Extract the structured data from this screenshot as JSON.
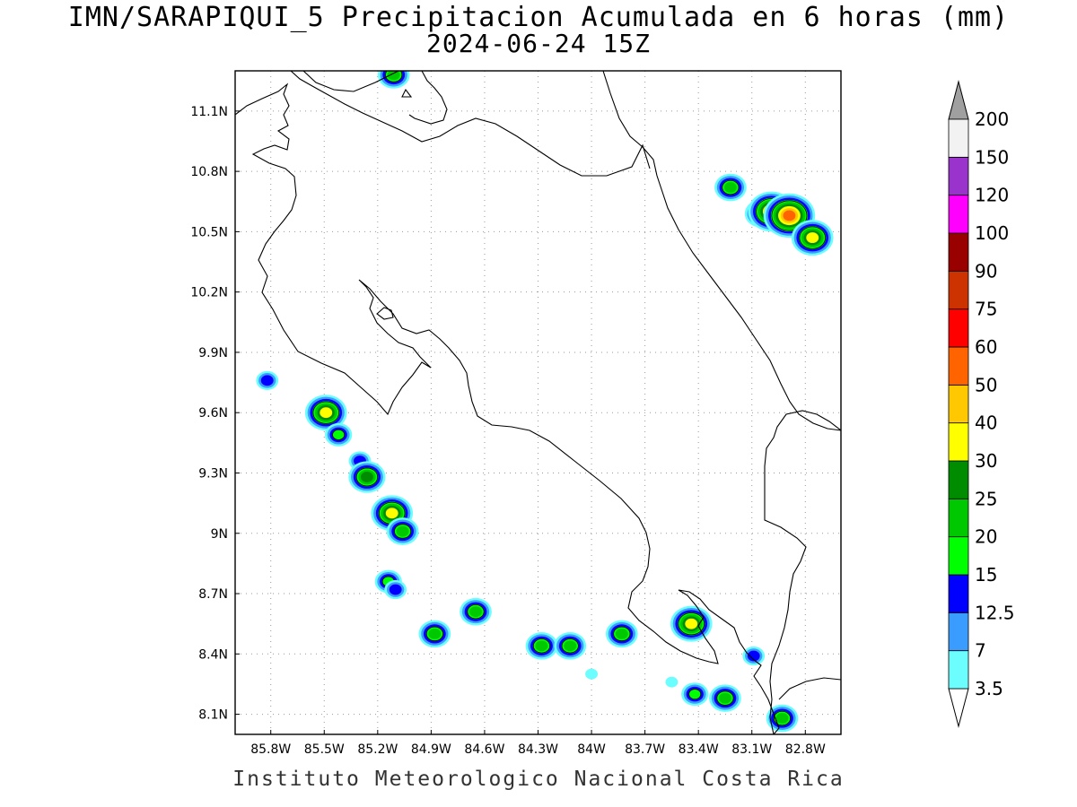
{
  "title_line1": "IMN/SARAPIQUI_5 Precipitacion Acumulada en 6 horas (mm)",
  "title_line2": "2024-06-24 15Z",
  "footer": "Instituto Meteorologico Nacional Costa Rica",
  "map": {
    "lon_range": [
      -86.0,
      -82.6
    ],
    "lat_range": [
      8.0,
      11.3
    ],
    "lat_ticks": [
      {
        "v": 11.1,
        "label": "11.1N"
      },
      {
        "v": 10.8,
        "label": "10.8N"
      },
      {
        "v": 10.5,
        "label": "10.5N"
      },
      {
        "v": 10.2,
        "label": "10.2N"
      },
      {
        "v": 9.9,
        "label": "9.9N"
      },
      {
        "v": 9.6,
        "label": "9.6N"
      },
      {
        "v": 9.3,
        "label": "9.3N"
      },
      {
        "v": 9.0,
        "label": "9N"
      },
      {
        "v": 8.7,
        "label": "8.7N"
      },
      {
        "v": 8.4,
        "label": "8.4N"
      },
      {
        "v": 8.1,
        "label": "8.1N"
      }
    ],
    "lon_ticks": [
      {
        "v": -85.8,
        "label": "85.8W"
      },
      {
        "v": -85.5,
        "label": "85.5W"
      },
      {
        "v": -85.2,
        "label": "85.2W"
      },
      {
        "v": -84.9,
        "label": "84.9W"
      },
      {
        "v": -84.6,
        "label": "84.6W"
      },
      {
        "v": -84.3,
        "label": "84.3W"
      },
      {
        "v": -84.0,
        "label": "84W"
      },
      {
        "v": -83.7,
        "label": "83.7W"
      },
      {
        "v": -83.4,
        "label": "83.4W"
      },
      {
        "v": -83.1,
        "label": "83.1W"
      },
      {
        "v": -82.8,
        "label": "82.8W"
      }
    ],
    "grid": true
  },
  "colorbar": {
    "levels": [
      "3.5",
      "7",
      "12.5",
      "15",
      "20",
      "25",
      "30",
      "40",
      "50",
      "60",
      "75",
      "90",
      "100",
      "120",
      "150",
      "200"
    ],
    "colors": [
      "#6cfdff",
      "#3a9cff",
      "#0000ff",
      "#00ff00",
      "#00c800",
      "#008c00",
      "#ffff00",
      "#ffc800",
      "#ff6400",
      "#ff0000",
      "#cc3300",
      "#990000",
      "#ff00ff",
      "#9933cc",
      "#f2f2f2"
    ],
    "lower_end_color": "#ffffff",
    "upper_end_color": "#a0a0a0"
  },
  "precip_cells": [
    {
      "lon": -85.82,
      "lat": 9.76,
      "amount": 14
    },
    {
      "lon": -85.49,
      "lat": 9.6,
      "amount": 32
    },
    {
      "lon": -85.42,
      "lat": 9.49,
      "amount": 16
    },
    {
      "lon": -85.3,
      "lat": 9.36,
      "amount": 13
    },
    {
      "lon": -85.26,
      "lat": 9.28,
      "amount": 28
    },
    {
      "lon": -85.12,
      "lat": 9.1,
      "amount": 30
    },
    {
      "lon": -85.06,
      "lat": 9.01,
      "amount": 22
    },
    {
      "lon": -85.14,
      "lat": 8.76,
      "amount": 18
    },
    {
      "lon": -85.1,
      "lat": 8.72,
      "amount": 14
    },
    {
      "lon": -84.88,
      "lat": 8.5,
      "amount": 22
    },
    {
      "lon": -84.65,
      "lat": 8.61,
      "amount": 22
    },
    {
      "lon": -84.28,
      "lat": 8.44,
      "amount": 22
    },
    {
      "lon": -84.12,
      "lat": 8.44,
      "amount": 24
    },
    {
      "lon": -83.83,
      "lat": 8.5,
      "amount": 22
    },
    {
      "lon": -83.44,
      "lat": 8.55,
      "amount": 32
    },
    {
      "lon": -83.42,
      "lat": 8.2,
      "amount": 18
    },
    {
      "lon": -83.25,
      "lat": 8.18,
      "amount": 24
    },
    {
      "lon": -83.22,
      "lat": 10.72,
      "amount": 22
    },
    {
      "lon": -83.05,
      "lat": 10.59,
      "amount": 24
    },
    {
      "lon": -82.99,
      "lat": 10.6,
      "amount": 44
    },
    {
      "lon": -82.89,
      "lat": 10.58,
      "amount": 55
    },
    {
      "lon": -82.76,
      "lat": 10.47,
      "amount": 30
    },
    {
      "lon": -83.09,
      "lat": 8.39,
      "amount": 14
    },
    {
      "lon": -82.93,
      "lat": 8.08,
      "amount": 24
    },
    {
      "lon": -85.11,
      "lat": 11.28,
      "amount": 20
    },
    {
      "lon": -84.0,
      "lat": 8.3,
      "amount": 6
    },
    {
      "lon": -83.55,
      "lat": 8.26,
      "amount": 6
    }
  ]
}
